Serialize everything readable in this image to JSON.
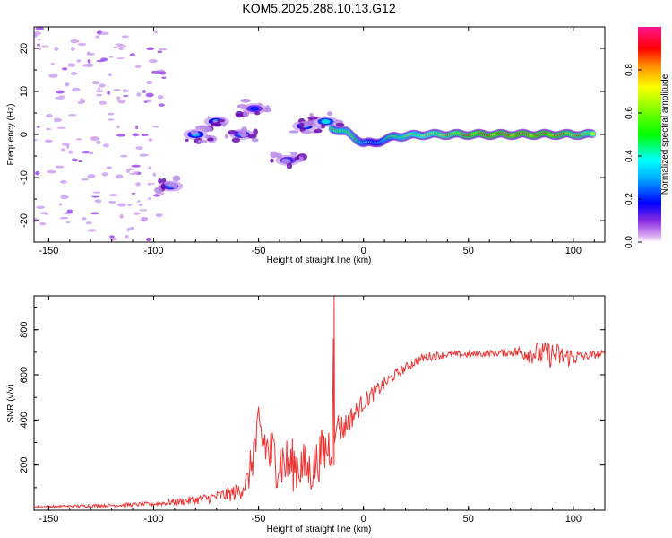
{
  "title": "KOM5.2025.288.10.13.G12",
  "chart_data": [
    {
      "type": "heatmap",
      "xlabel": "Height of straight line (km)",
      "ylabel": "Frequency (Hz)",
      "xlim": [
        -157,
        115
      ],
      "ylim": [
        -25,
        25
      ],
      "xticks": [
        -150,
        -100,
        -50,
        0,
        50,
        100
      ],
      "yticks": [
        -20,
        -10,
        0,
        10,
        20
      ],
      "colorbar": {
        "label": "Normalized spectral amplitude",
        "range": [
          0,
          1
        ],
        "ticks": [
          "0.0",
          "0.2",
          "0.4",
          "0.6",
          "0.8"
        ],
        "tick_values": [
          0.0,
          0.2,
          0.4,
          0.6,
          0.8
        ]
      },
      "features": [
        {
          "name": "noise-scatter",
          "x_range": [
            -157,
            -95
          ],
          "f_range": [
            -25,
            25
          ],
          "amplitude": 0.05
        },
        {
          "name": "cluster-a",
          "x": -92,
          "f": -12,
          "amplitude": 0.25
        },
        {
          "name": "cluster-b",
          "x": -80,
          "f": 0,
          "amplitude": 0.3
        },
        {
          "name": "cluster-c",
          "x": -70,
          "f": 3,
          "amplitude": 0.3
        },
        {
          "name": "cluster-d",
          "x": -58,
          "f": 0,
          "amplitude": 0.25
        },
        {
          "name": "cluster-e",
          "x": -52,
          "f": 6,
          "amplitude": 0.2
        },
        {
          "name": "cluster-f",
          "x": -36,
          "f": -6,
          "amplitude": 0.2
        },
        {
          "name": "cluster-g",
          "x": -28,
          "f": 2,
          "amplitude": 0.3
        },
        {
          "name": "cluster-h",
          "x": -18,
          "f": 3,
          "amplitude": 0.35
        }
      ],
      "ridge": [
        {
          "x": -15,
          "f": 1.5,
          "amplitude": 0.55
        },
        {
          "x": -8,
          "f": 0.5,
          "amplitude": 0.6
        },
        {
          "x": 0,
          "f": -2,
          "amplitude": 0.45
        },
        {
          "x": 5,
          "f": -2,
          "amplitude": 0.3
        },
        {
          "x": 15,
          "f": -0.5,
          "amplitude": 0.55
        },
        {
          "x": 30,
          "f": 0,
          "amplitude": 0.7
        },
        {
          "x": 50,
          "f": 0,
          "amplitude": 0.85
        },
        {
          "x": 70,
          "f": 0,
          "amplitude": 0.95
        },
        {
          "x": 90,
          "f": 0,
          "amplitude": 0.9
        },
        {
          "x": 110,
          "f": 0,
          "amplitude": 0.75
        }
      ]
    },
    {
      "type": "line",
      "xlabel": "Height of straight line (km)",
      "ylabel": "SNR (v/v)",
      "xlim": [
        -157,
        115
      ],
      "ylim": [
        0,
        950
      ],
      "xticks": [
        -150,
        -100,
        -50,
        0,
        50,
        100
      ],
      "yticks": [
        200,
        400,
        600,
        800
      ],
      "series": [
        {
          "name": "SNR",
          "color": "#ee3333",
          "x": [
            -157,
            -140,
            -120,
            -100,
            -80,
            -70,
            -60,
            -55,
            -52,
            -50,
            -47,
            -45,
            -40,
            -35,
            -30,
            -25,
            -20,
            -15,
            -14,
            -12,
            -10,
            -5,
            0,
            5,
            10,
            15,
            20,
            25,
            30,
            40,
            50,
            60,
            70,
            80,
            85,
            90,
            95,
            100,
            105,
            110,
            115
          ],
          "y": [
            15,
            18,
            22,
            28,
            45,
            60,
            80,
            130,
            280,
            320,
            300,
            250,
            220,
            200,
            200,
            170,
            250,
            300,
            950,
            380,
            360,
            420,
            480,
            520,
            560,
            600,
            630,
            660,
            680,
            690,
            690,
            695,
            700,
            700,
            690,
            690,
            680,
            680,
            680,
            690,
            690
          ]
        }
      ],
      "noise_amplitude": [
        5,
        6,
        8,
        10,
        20,
        25,
        40,
        60,
        120,
        140,
        140,
        130,
        130,
        120,
        120,
        100,
        110,
        120,
        0,
        80,
        60,
        50,
        40,
        35,
        30,
        25,
        22,
        20,
        20,
        15,
        15,
        15,
        18,
        50,
        55,
        60,
        50,
        40,
        20,
        18,
        18
      ]
    }
  ]
}
